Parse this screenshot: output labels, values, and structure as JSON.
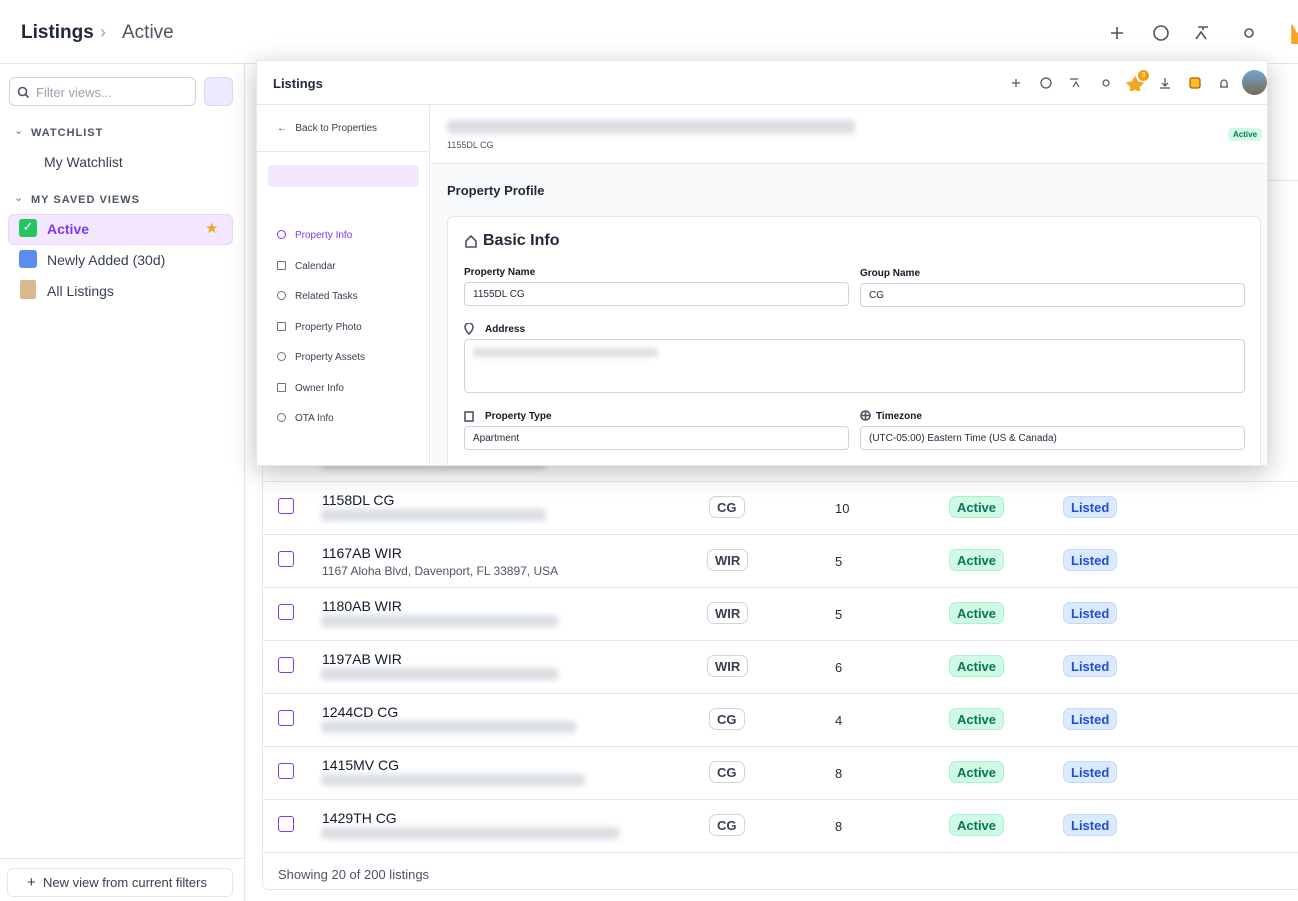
{
  "header": {
    "breadcrumb": [
      "Listings",
      "Active"
    ]
  },
  "sidebar": {
    "filter_placeholder": "Filter views...",
    "sections": [
      {
        "title": "WATCHLIST",
        "items": [
          "My Watchlist"
        ]
      },
      {
        "title": "MY SAVED VIEWS",
        "items": [
          "Active",
          "Newly Added (30d)",
          "All Listings"
        ]
      }
    ],
    "new_view_button": "New view from current filters"
  },
  "table": {
    "rows": [
      {
        "name": "1158DL CG",
        "group": "CG",
        "count": 10,
        "status": "Active",
        "listing": "Listed"
      },
      {
        "name": "1167AB WIR",
        "address": "1167 Aloha Blvd, Davenport, FL 33897, USA",
        "group": "WIR",
        "count": 5,
        "status": "Active",
        "listing": "Listed"
      },
      {
        "name": "1180AB WIR",
        "group": "WIR",
        "count": 5,
        "status": "Active",
        "listing": "Listed"
      },
      {
        "name": "1197AB WIR",
        "group": "WIR",
        "count": 6,
        "status": "Active",
        "listing": "Listed"
      },
      {
        "name": "1244CD CG",
        "group": "CG",
        "count": 4,
        "status": "Active",
        "listing": "Listed"
      },
      {
        "name": "1415MV CG",
        "group": "CG",
        "count": 8,
        "status": "Active",
        "listing": "Listed"
      },
      {
        "name": "1429TH CG",
        "group": "CG",
        "count": 8,
        "status": "Active",
        "listing": "Listed"
      }
    ],
    "footer": "Showing 20 of 200 listings"
  },
  "modal": {
    "title": "Listings",
    "notification_badge": "3",
    "back": "Back to Properties",
    "nav": [
      "Property Info",
      "Calendar",
      "Related Tasks",
      "Property Photo",
      "Property Assets",
      "Owner Info",
      "OTA Info"
    ],
    "property_code": "1155DL CG",
    "status": "Active",
    "section_title": "Property Profile",
    "card_title": "Basic Info",
    "fields": [
      {
        "label": "Property Name",
        "value": "1155DL CG"
      },
      {
        "label": "Group Name",
        "value": "CG"
      },
      {
        "label": "Address"
      },
      {
        "label": "Property Type",
        "value": "Apartment"
      },
      {
        "label": "Timezone",
        "value": "(UTC-05:00) Eastern Time (US & Canada)"
      }
    ]
  }
}
